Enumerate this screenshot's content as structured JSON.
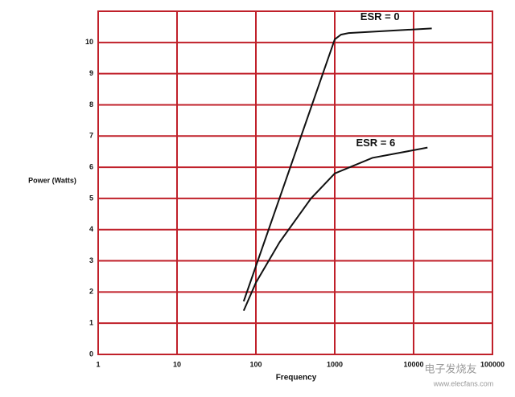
{
  "chart_data": {
    "type": "line",
    "x_label": "Frequency",
    "y_label": "Power (Watts)",
    "x_scale": "log",
    "grid": true,
    "grid_color": "#c0202a",
    "xlim": [
      1,
      100000
    ],
    "xticks": [
      1,
      10,
      100,
      1000,
      10000,
      100000
    ],
    "ylim": [
      0,
      11
    ],
    "yticks": [
      0,
      1,
      2,
      3,
      4,
      5,
      6,
      7,
      8,
      9,
      10
    ],
    "series": [
      {
        "name": "ESR = 0",
        "color": "#111111",
        "x": [
          70,
          1000,
          1200,
          1500,
          17000
        ],
        "values": [
          1.7,
          10.1,
          10.25,
          10.3,
          10.45
        ]
      },
      {
        "name": "ESR = 6",
        "color": "#111111",
        "x": [
          70,
          100,
          200,
          500,
          1000,
          3000,
          15000
        ],
        "values": [
          1.4,
          2.3,
          3.6,
          5.0,
          5.8,
          6.3,
          6.63
        ]
      }
    ],
    "watermark": [
      "电子发烧友",
      "www.elecfans.com"
    ]
  }
}
